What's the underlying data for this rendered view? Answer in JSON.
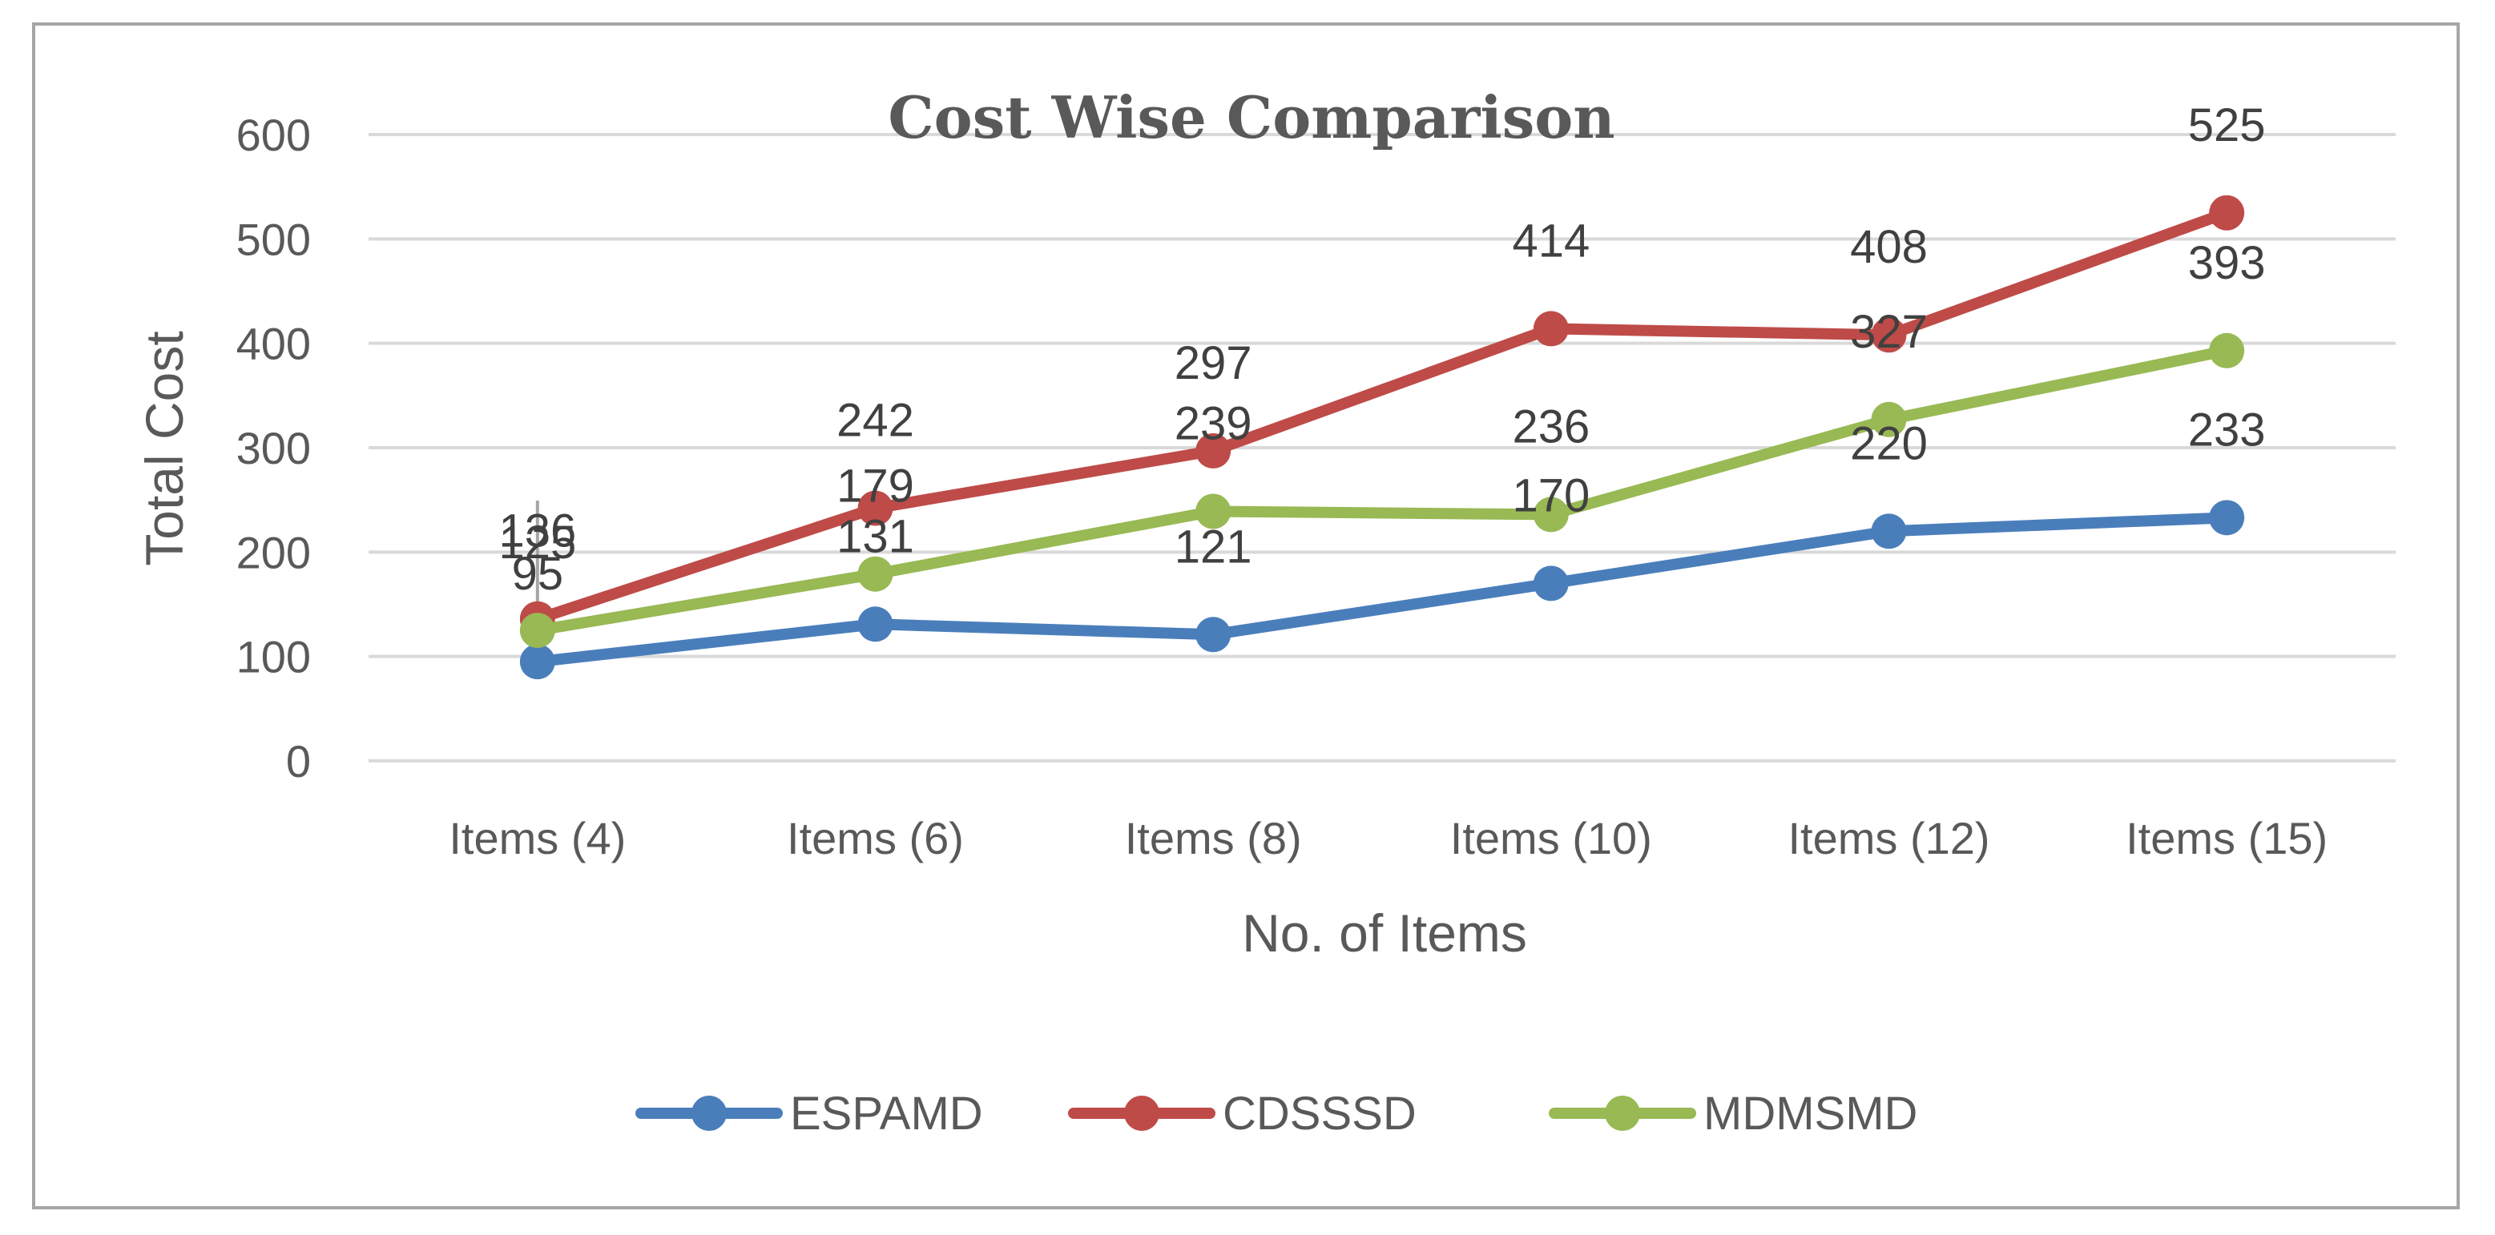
{
  "chart_data": {
    "type": "line",
    "title": "Cost Wise Comparison",
    "xlabel": "No. of Items",
    "ylabel": "Total Cost",
    "categories": [
      "Items (4)",
      "Items (6)",
      "Items (8)",
      "Items (10)",
      "Items (12)",
      "Items (15)"
    ],
    "ylim": [
      0,
      600
    ],
    "yticks": [
      0,
      100,
      200,
      300,
      400,
      500,
      600
    ],
    "grid": true,
    "legend_position": "bottom",
    "series": [
      {
        "name": "ESPAMD",
        "color": "#4a7ebb",
        "values": [
          95,
          131,
          121,
          170,
          220,
          233
        ]
      },
      {
        "name": "CDSSSD",
        "color": "#be4b48",
        "values": [
          136,
          242,
          297,
          414,
          408,
          525
        ]
      },
      {
        "name": "MDMSMD",
        "color": "#98b954",
        "values": [
          125,
          179,
          239,
          236,
          327,
          393
        ]
      }
    ]
  }
}
